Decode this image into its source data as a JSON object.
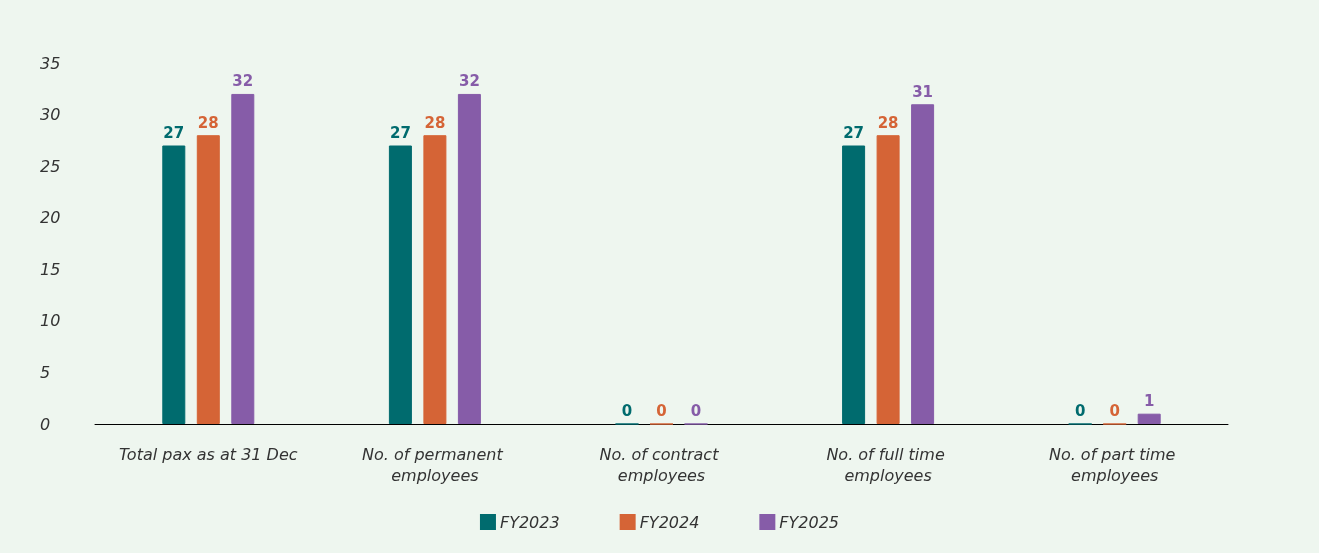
{
  "chart_data": {
    "type": "bar",
    "categories": [
      "Total pax as at 31 Dec",
      "No. of permanent employees",
      "No. of contract employees",
      "No. of full time employees",
      "No. of part time employees"
    ],
    "series": [
      {
        "name": "FY2023",
        "color": "#006b6e",
        "values": [
          27,
          27,
          0,
          27,
          0
        ]
      },
      {
        "name": "FY2024",
        "color": "#d56436",
        "values": [
          28,
          28,
          0,
          28,
          0
        ]
      },
      {
        "name": "FY2025",
        "color": "#865ca8",
        "values": [
          32,
          32,
          0,
          31,
          1
        ]
      }
    ],
    "ylim": [
      0,
      35
    ],
    "yticks": [
      0,
      5,
      10,
      15,
      20,
      25,
      30,
      35
    ],
    "grid": false,
    "legend": "bottom",
    "data_labels": true
  }
}
